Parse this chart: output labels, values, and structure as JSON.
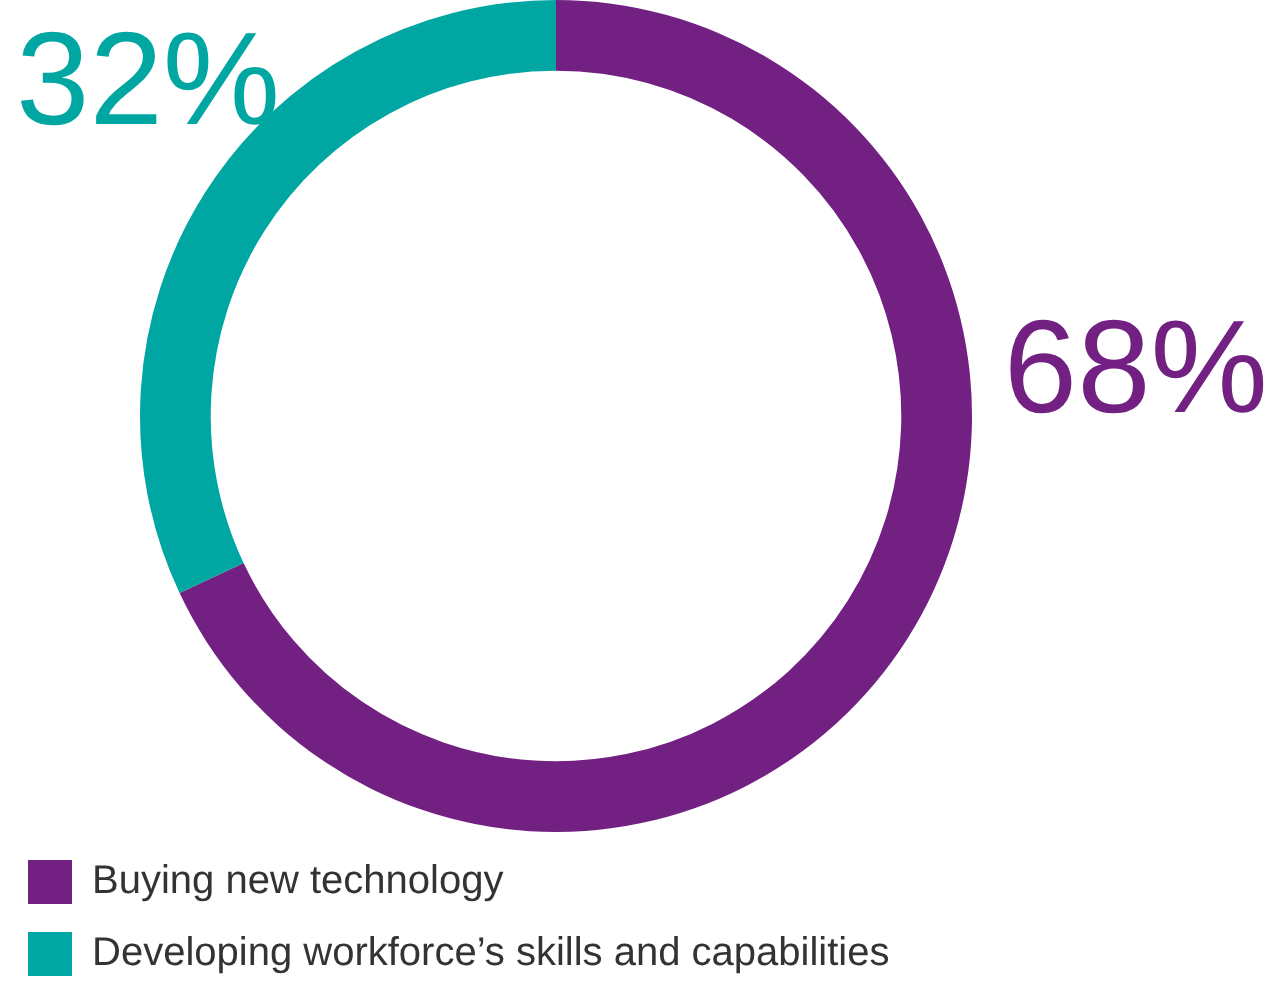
{
  "chart_data": {
    "type": "donut",
    "categories": [
      "Buying new technology",
      "Developing workforce’s skills and capabilities"
    ],
    "values": [
      68,
      32
    ],
    "colors": [
      "#722082",
      "#00a7a2"
    ],
    "value_labels": [
      "68%",
      "32%"
    ],
    "legend": "bottom"
  }
}
